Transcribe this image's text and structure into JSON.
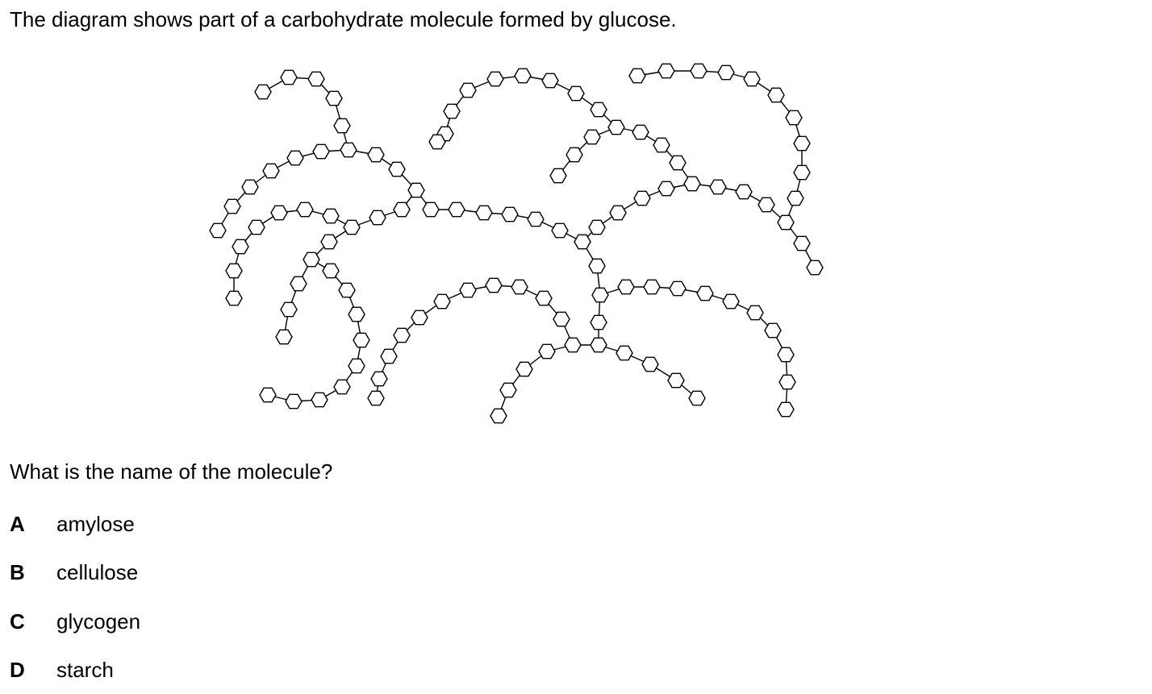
{
  "question": {
    "intro": "The diagram shows part of a carbohydrate molecule formed by glucose.",
    "prompt": "What is the name of the molecule?",
    "options": [
      {
        "letter": "A",
        "text": "amylose"
      },
      {
        "letter": "B",
        "text": "cellulose"
      },
      {
        "letter": "C",
        "text": "glycogen"
      },
      {
        "letter": "D",
        "text": "starch"
      }
    ]
  },
  "diagram": {
    "subject": "branched chains of hexagonal glucose rings",
    "stroke_color": "#000000",
    "fill_color": "#ffffff"
  }
}
